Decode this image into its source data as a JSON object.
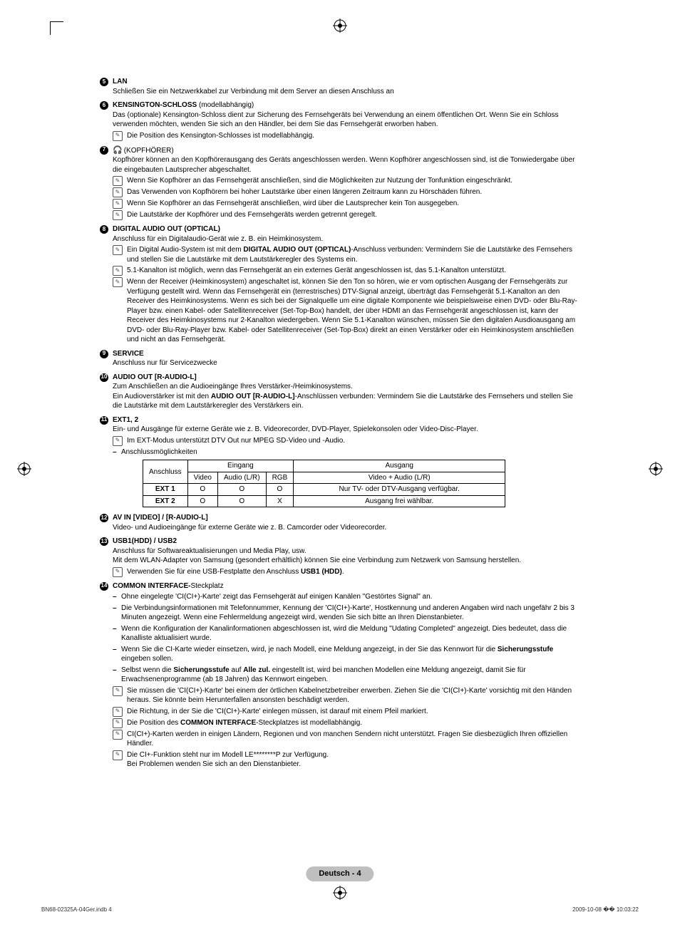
{
  "items": {
    "lan": {
      "num": "5",
      "title": "LAN",
      "body": "Schließen Sie ein Netzwerkkabel zur Verbindung mit dem Server an diesen Anschluss an"
    },
    "kensington": {
      "num": "6",
      "title": "KENSINGTON-SCHLOSS",
      "title_suffix": " (modellabhängig)",
      "body": "Das (optionale) Kensington-Schloss dient zur Sicherung des Fernsehgeräts bei Verwendung an einem öffentlichen Ort. Wenn Sie ein Schloss verwenden möchten, wenden Sie sich an den Händler, bei dem Sie das Fernsehgerät erworben haben.",
      "notes": [
        "Die Position des Kensington-Schlosses ist modellabhängig."
      ]
    },
    "headphone": {
      "num": "7",
      "title": "(KOPFHÖRER)",
      "body": "Kopfhörer können an den Kopfhörerausgang des Geräts angeschlossen werden. Wenn Kopfhörer angeschlossen sind, ist die Tonwiedergabe über die eingebauten Lautsprecher abgeschaltet.",
      "notes": [
        "Wenn Sie Kopfhörer an das Fernsehgerät anschließen, sind die Möglichkeiten zur Nutzung der Tonfunktion eingeschränkt.",
        "Das Verwenden von Kopfhörern bei hoher Lautstärke über einen längeren Zeitraum kann zu Hörschäden führen.",
        "Wenn Sie Kopfhörer an das Fernsehgerät anschließen, wird über die Lautsprecher kein Ton ausgegeben.",
        "Die Lautstärke der Kopfhörer und des Fernsehgeräts werden getrennt geregelt."
      ]
    },
    "dao": {
      "num": "8",
      "title": "DIGITAL AUDIO OUT (OPTICAL)",
      "body": "Anschluss für ein Digitalaudio-Gerät wie z. B. ein Heimkinosystem.",
      "notes": [
        "Ein Digital Audio-System ist mit dem <b>DIGITAL AUDIO OUT (OPTICAL)</b>-Anschluss verbunden: Vermindern Sie die Lautstärke des Fernsehers und stellen Sie die Lautstärke mit dem Lautstärkeregler des Systems ein.",
        "5.1-Kanalton ist möglich, wenn das Fernsehgerät an ein externes Gerät angeschlossen ist, das 5.1-Kanalton unterstützt.",
        "Wenn der Receiver (Heimkinosystem) angeschaltet ist, können Sie den Ton so hören, wie er vom optischen Ausgang der Fernsehgeräts zur Verfügung gestellt wird. Wenn das Fernsehgerät ein (terrestrisches) DTV-Signal anzeigt, überträgt das Fernsehgerät 5.1-Kanalton an den Receiver des Heimkinosystems. Wenn es sich bei der Signalquelle um eine digitale Komponente wie beispielsweise einen DVD- oder Blu-Ray-Player bzw. einen Kabel- oder Satellitenreceiver (Set-Top-Box) handelt, der über HDMI an das Fernsehgerät angeschlossen ist, kann der Receiver des Heimkinosystems nur 2-Kanalton wiedergeben. Wenn Sie 5.1-Kanalton wünschen, müssen Sie den digitalen Ausdioausgang am DVD- oder Blu-Ray-Player bzw. Kabel- oder Satellitenreceiver (Set-Top-Box) direkt an einen Verstärker oder ein Heimkinosystem anschließen und nicht an das Fernsehgerät."
      ]
    },
    "service": {
      "num": "9",
      "title": "SERVICE",
      "body": "Anschluss nur für Servicezwecke"
    },
    "audioout": {
      "num": "10",
      "title": "AUDIO OUT [R-AUDIO-L]",
      "body": "Zum Anschließen an die Audioeingänge Ihres Verstärker-/Heimkinosystems.",
      "body2": "Ein Audioverstärker ist mit den <b>AUDIO OUT [R-AUDIO-L]</b>-Anschlüssen verbunden: Vermindern Sie die Lautstärke des Fernsehers und stellen Sie die Lautstärke mit dem Lautstärkeregler des Verstärkers ein."
    },
    "ext": {
      "num": "11",
      "title": "EXT1, 2",
      "body": "Ein- und Ausgänge für externe Geräte wie z. B. Videorecorder, DVD-Player, Spielekonsolen oder Video-Disc-Player.",
      "notes": [
        "Im EXT-Modus unterstützt DTV Out nur MPEG SD-Video und -Audio."
      ],
      "dash": "Anschlussmöglichkeiten"
    },
    "avin": {
      "num": "12",
      "title": "AV IN [VIDEO] / [R-AUDIO-L]",
      "body": "Video- und Audioeingänge für externe Geräte wie z. B. Camcorder oder Videorecorder."
    },
    "usb": {
      "num": "13",
      "title": "USB1(HDD) / USB2",
      "body": "Anschluss für Softwareaktualisierungen und Media Play, usw.",
      "body2": "Mit dem WLAN-Adapter von Samsung (gesondert erhältlich) können Sie eine Verbindung zum Netzwerk von Samsung herstellen.",
      "notes": [
        "Verwenden Sie für eine USB-Festplatte den Anschluss <b>USB1 (HDD)</b>."
      ]
    },
    "ci": {
      "num": "14",
      "title": "COMMON INTERFACE-",
      "title_suffix": "Steckplatz",
      "dashes": [
        "Ohne eingelegte 'CI(CI+)-Karte' zeigt das Fernsehgerät auf einigen Kanälen \"Gestörtes Signal\" an.",
        "Die Verbindungsinformationen mit Telefonnummer, Kennung der 'CI(CI+)-Karte', Hostkennung und anderen Angaben wird nach ungefähr 2 bis 3 Minuten angezeigt. Wenn eine Fehlermeldung angezeigt wird, wenden Sie sich bitte an Ihren Dienstanbieter.",
        "Wenn die Konfiguration der Kanalinformationen abgeschlossen ist, wird die Meldung \"Udating Completed\" angezeigt. Dies bedeutet, dass die Kanalliste aktualisiert wurde.",
        "Wenn Sie die CI-Karte wieder einsetzen, wird, je nach Modell, eine Meldung angezeigt, in der Sie das Kennwort für die <b>Sicherungsstufe</b> eingeben sollen.",
        "Selbst wenn die <b>Sicherungsstufe</b> auf <b>Alle zul.</b> eingestellt ist, wird bei manchen Modellen eine Meldung angezeigt, damit Sie für Erwachsenenprogramme (ab 18 Jahren) das Kennwort eingeben."
      ],
      "notes": [
        "Sie müssen die 'CI(CI+)-Karte' bei einem der örtlichen Kabelnetzbetreiber erwerben. Ziehen Sie die 'CI(CI+)-Karte' vorsichtig mit den Händen heraus. Sie könnte beim Herunterfallen ansonsten beschädigt werden.",
        "Die Richtung, in der Sie die 'CI(CI+)-Karte' einlegen müssen, ist darauf mit einem Pfeil markiert.",
        "Die Position des <b>COMMON INTERFACE</b>-Steckplatzes ist modellabhängig.",
        "CI(CI+)-Karten werden in einigen Ländern, Regionen und von manchen Sendern nicht unterstützt. Fragen Sie diesbezüglich Ihren offiziellen Händler.",
        "Die CI+-Funktion steht nur im Modell LE********P zur Verfügung.<br>Bei Problemen wenden Sie sich an den Dienstanbieter."
      ]
    }
  },
  "table": {
    "header_conn": "Anschluss",
    "header_in": "Eingang",
    "header_out": "Ausgang",
    "cols_in": [
      "Video",
      "Audio (L/R)",
      "RGB"
    ],
    "col_out": "Video + Audio (L/R)",
    "rows": [
      {
        "name": "EXT 1",
        "v": "O",
        "a": "O",
        "r": "O",
        "out": "Nur TV- oder DTV-Ausgang verfügbar."
      },
      {
        "name": "EXT 2",
        "v": "O",
        "a": "O",
        "r": "X",
        "out": "Ausgang frei wählbar."
      }
    ]
  },
  "footer": {
    "badge": "Deutsch - 4",
    "left": "BN68-02325A-04Ger.indb   4",
    "right": "2009-10-08   �� 10:03:22"
  }
}
